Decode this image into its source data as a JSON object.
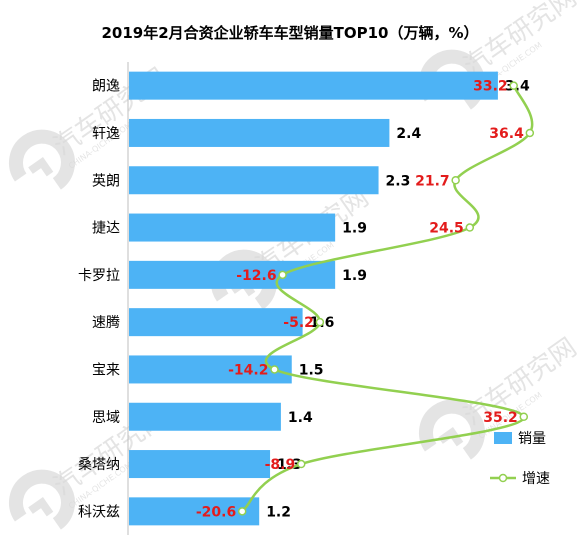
{
  "chart_data": {
    "type": "bar",
    "title": "2019年2月合资企业轿车车型销量TOP10（万辆，%）",
    "categories": [
      "朗逸",
      "轩逸",
      "英朗",
      "捷达",
      "卡罗拉",
      "速腾",
      "宝来",
      "思域",
      "桑塔纳",
      "科沃兹"
    ],
    "series": [
      {
        "name": "销量",
        "type": "bar",
        "values": [
          3.4,
          2.4,
          2.3,
          1.9,
          1.9,
          1.6,
          1.5,
          1.4,
          1.3,
          1.2
        ]
      },
      {
        "name": "增速",
        "type": "line",
        "values": [
          33.2,
          36.4,
          21.7,
          24.5,
          -12.6,
          -5.2,
          -14.2,
          35.2,
          -8.9,
          -20.6
        ]
      }
    ],
    "colors": {
      "bar": "#4db3f5",
      "line": "#92d050",
      "rate_label": "#e31c1c"
    },
    "legend_position": "right",
    "orientation": "horizontal",
    "grid": false
  },
  "watermark": {
    "text": "汽车研究网",
    "sub": "CHINA-QICHE.COM"
  }
}
